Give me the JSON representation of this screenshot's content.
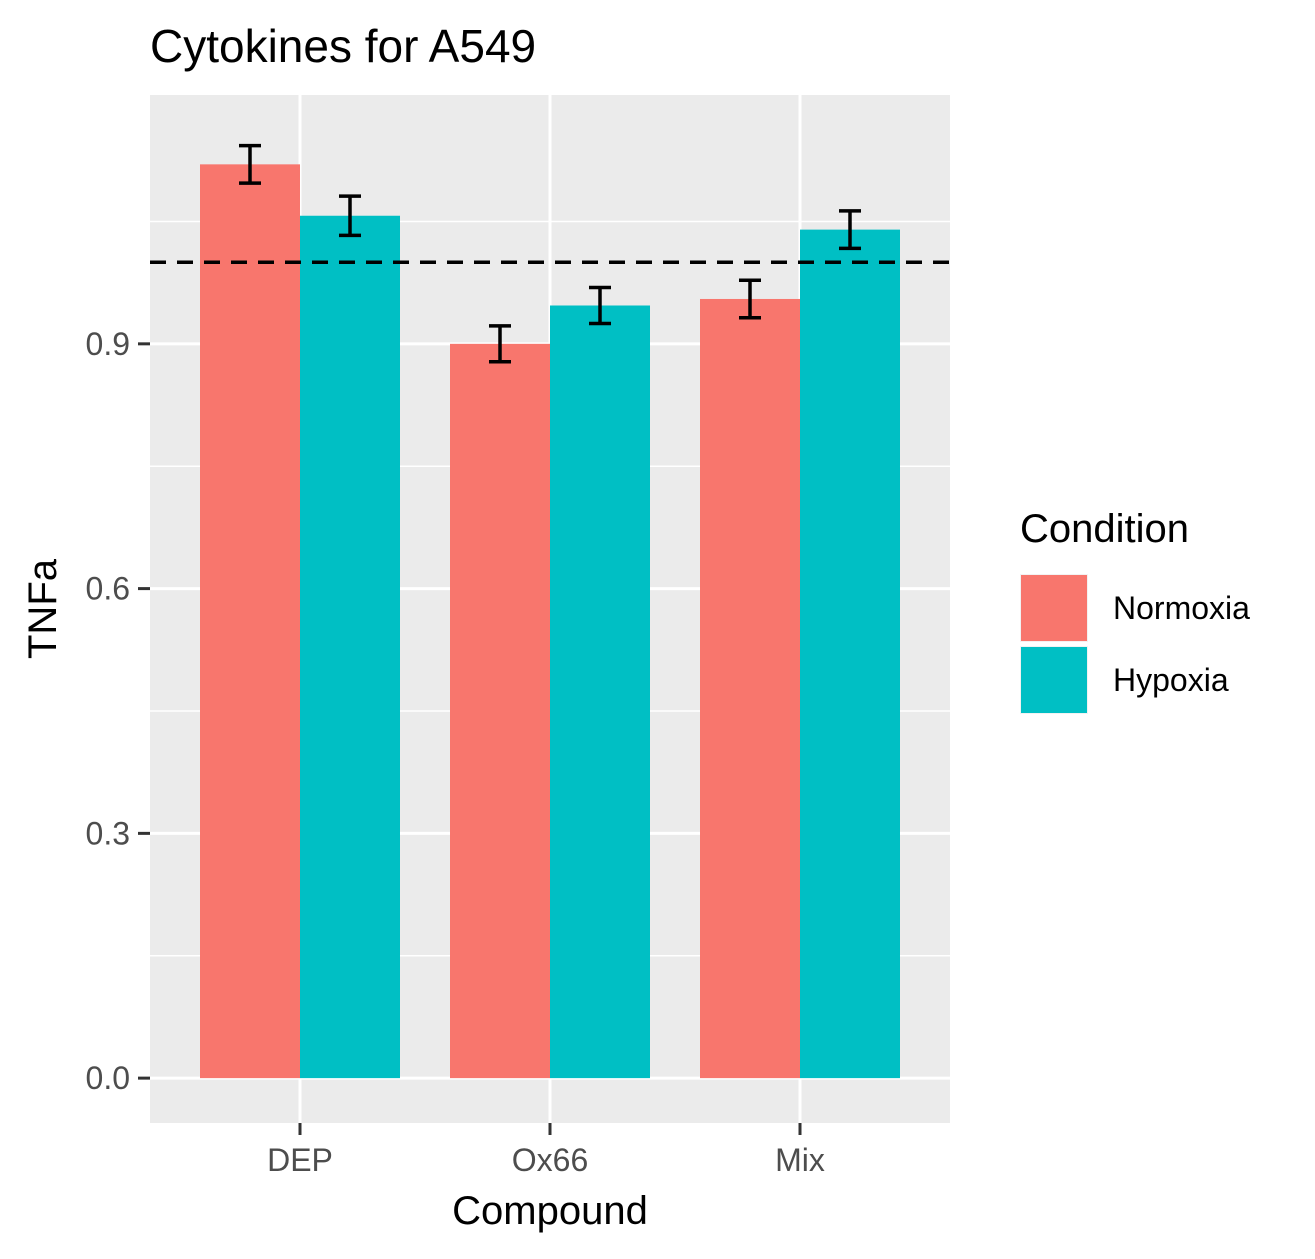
{
  "chart_data": {
    "type": "bar",
    "title": "Cytokines for A549",
    "xlabel": "Compound",
    "ylabel": "TNFa",
    "categories": [
      "DEP",
      "Ox66",
      "Mix"
    ],
    "series": [
      {
        "name": "Normoxia",
        "color": "#F8766D",
        "values": [
          1.12,
          0.9,
          0.955
        ],
        "errors": [
          0.023,
          0.022,
          0.023
        ]
      },
      {
        "name": "Hypoxia",
        "color": "#00BFC4",
        "values": [
          1.057,
          0.947,
          1.04
        ],
        "errors": [
          0.024,
          0.022,
          0.023
        ]
      }
    ],
    "ylim": [
      -0.055,
      1.205
    ],
    "yticks": [
      0.0,
      0.3,
      0.6,
      0.9
    ],
    "ytick_labels": [
      "0.0",
      "0.3",
      "0.6",
      "0.9"
    ],
    "reference_line": 1.0,
    "grid": true,
    "legend": {
      "title": "Condition",
      "position": "right"
    },
    "colors": {
      "panel": "#EBEBEB",
      "grid": "#FFFFFF",
      "axis_text": "#4D4D4D",
      "text": "#000000"
    }
  }
}
